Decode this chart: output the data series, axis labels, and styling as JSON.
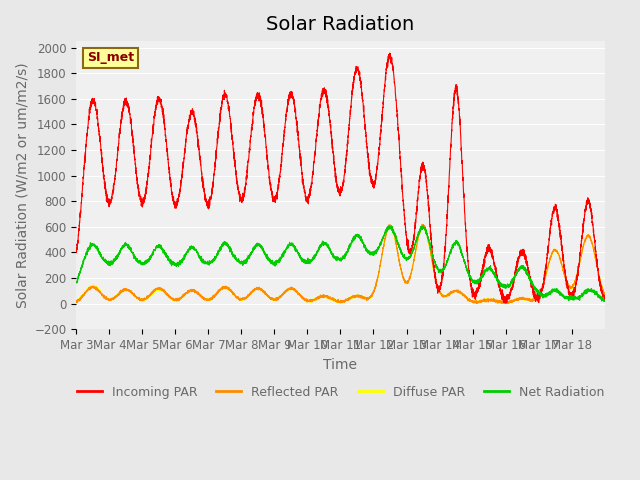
{
  "title": "Solar Radiation",
  "ylabel": "Solar Radiation (W/m2 or um/m2/s)",
  "xlabel": "Time",
  "ylim": [
    -200,
    2050
  ],
  "yticks": [
    -200,
    0,
    200,
    400,
    600,
    800,
    1000,
    1200,
    1400,
    1600,
    1800,
    2000
  ],
  "xtick_positions": [
    0,
    1,
    2,
    3,
    4,
    5,
    6,
    7,
    8,
    9,
    10,
    11,
    12,
    13,
    14,
    15
  ],
  "xtick_labels": [
    "Mar 3",
    "Mar 4",
    "Mar 5",
    "Mar 6",
    "Mar 7",
    "Mar 8",
    "Mar 9",
    "Mar 10",
    "Mar 11",
    "Mar 12",
    "Mar 13",
    "Mar 14",
    "Mar 15",
    "Mar 16",
    "Mar 17",
    "Mar 18"
  ],
  "annotation_text": "SI_met",
  "annotation_color": "#8B0000",
  "annotation_bg": "#FFFF99",
  "annotation_border": "#8B6914",
  "legend_entries": [
    "Incoming PAR",
    "Reflected PAR",
    "Diffuse PAR",
    "Net Radiation"
  ],
  "legend_colors": [
    "#FF0000",
    "#FF8C00",
    "#FFFF00",
    "#00CC00"
  ],
  "line_colors": {
    "incoming": "#FF0000",
    "reflected": "#FF8C00",
    "diffuse": "#FFFF00",
    "net": "#00CC00"
  },
  "bg_color": "#E8E8E8",
  "plot_bg_color": "#F0F0F0",
  "title_fontsize": 14,
  "axis_label_fontsize": 10,
  "tick_fontsize": 8.5,
  "n_days": 16,
  "points_per_day": 288,
  "incoming_peaks": [
    1580,
    1570,
    1590,
    1480,
    1620,
    1620,
    1625,
    1650,
    1820,
    1920,
    1080,
    1680,
    430,
    410,
    750,
    800
  ],
  "reflected_peaks": [
    130,
    110,
    120,
    105,
    130,
    120,
    120,
    60,
    60,
    610,
    610,
    100,
    30,
    40,
    420,
    530
  ],
  "diffuse_peaks": [
    140,
    110,
    110,
    105,
    130,
    120,
    120,
    55,
    60,
    600,
    600,
    100,
    30,
    40,
    420,
    530
  ],
  "net_peaks": [
    460,
    460,
    450,
    440,
    470,
    460,
    465,
    470,
    530,
    600,
    600,
    490,
    290,
    300,
    120,
    110
  ]
}
